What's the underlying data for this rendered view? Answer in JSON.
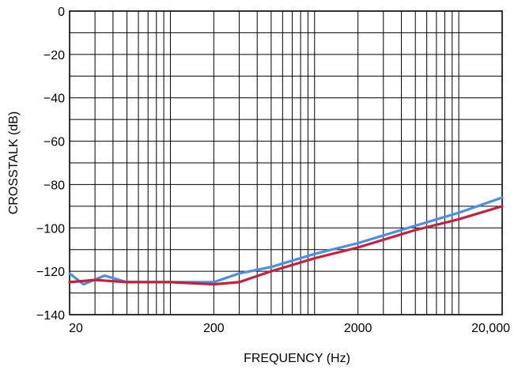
{
  "chart_data": {
    "type": "line",
    "xlabel": "FREQUENCY (Hz)",
    "ylabel": "CROSSTALK (dB)",
    "x_scale": "log",
    "xlim": [
      20,
      20000
    ],
    "ylim": [
      -140,
      0
    ],
    "x_ticks": [
      20,
      200,
      2000,
      20000
    ],
    "x_tick_labels": [
      "20",
      "200",
      "2000",
      "20,000"
    ],
    "y_ticks": [
      0,
      -20,
      -40,
      -60,
      -80,
      -100,
      -120,
      -140
    ],
    "y_tick_labels": [
      "0",
      "−20",
      "−40",
      "−60",
      "−80",
      "−100",
      "−120",
      "−140"
    ],
    "grid": true,
    "series": [
      {
        "color": "#4a8ee8",
        "x": [
          20,
          25,
          35,
          50,
          100,
          200,
          300,
          500,
          1000,
          2000,
          5000,
          10000,
          20000
        ],
        "y": [
          -121,
          -126,
          -122,
          -125,
          -125,
          -125,
          -121,
          -118,
          -112,
          -107,
          -99,
          -93,
          -86
        ]
      },
      {
        "color": "#c4213f",
        "x": [
          20,
          30,
          50,
          70,
          100,
          200,
          300,
          500,
          1000,
          2000,
          5000,
          10000,
          20000
        ],
        "y": [
          -125,
          -124,
          -125,
          -125,
          -125,
          -126,
          -125,
          -120,
          -114,
          -109,
          -101,
          -96,
          -90
        ]
      }
    ]
  }
}
